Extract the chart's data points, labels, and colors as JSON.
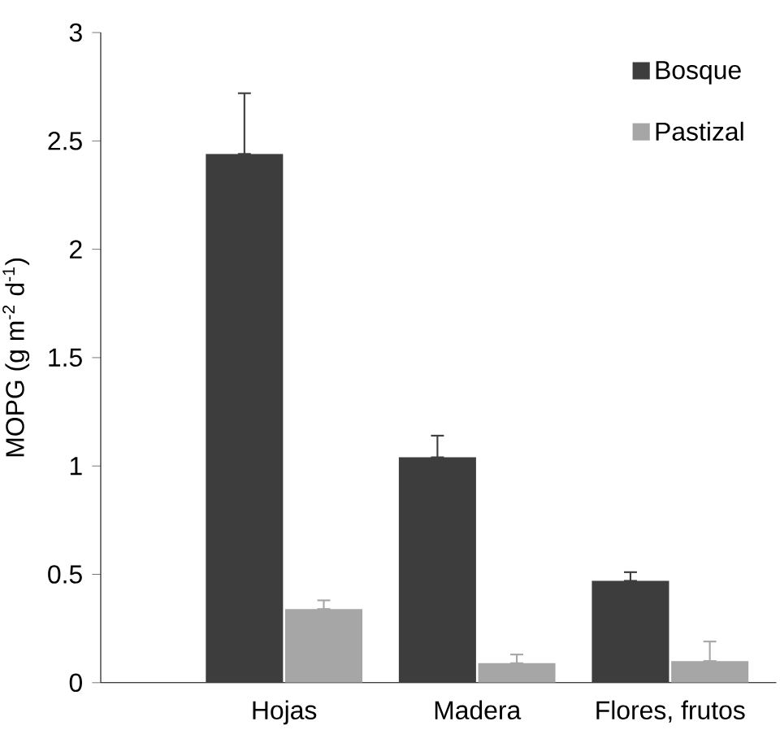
{
  "chart_data": {
    "type": "bar",
    "ylabel": "MOPG (g m$^{-2}$ d$^{-1}$)",
    "categories": [
      "Hojas",
      "Madera",
      "Flores, frutos"
    ],
    "series": [
      {
        "name": "Bosque",
        "color": "#3d3d3d",
        "values": [
          2.44,
          1.04,
          0.47
        ],
        "errors": [
          [
            2.44,
            2.72
          ],
          [
            1.04,
            1.14
          ],
          [
            0.47,
            0.51
          ]
        ]
      },
      {
        "name": "Pastizal",
        "color": "#a6a6a6",
        "values": [
          0.34,
          0.09,
          0.1
        ],
        "errors": [
          [
            0.34,
            0.38
          ],
          [
            0.09,
            0.13
          ],
          [
            0.1,
            0.19
          ]
        ]
      }
    ],
    "ylim": [
      0,
      3
    ],
    "yticks": [
      0,
      0.5,
      1,
      1.5,
      2,
      2.5,
      3
    ],
    "legend": "top right"
  }
}
